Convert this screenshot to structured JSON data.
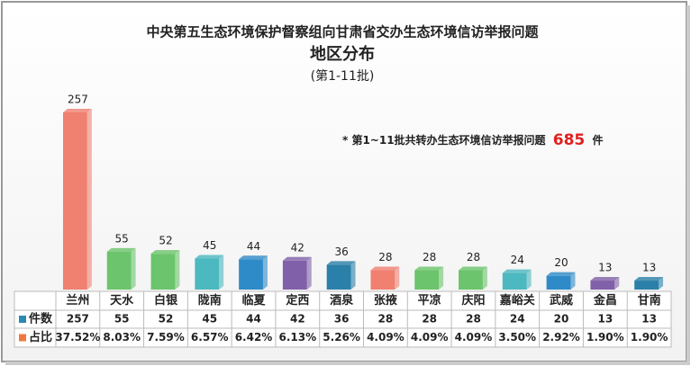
{
  "chart_data": {
    "type": "bar",
    "title": "中央第五生态环境保护督察组向甘肃省交办生态环境信访举报问题",
    "subtitle": "地区分布",
    "period": "(第1-11批)",
    "annotation": {
      "prefix": "* 第1~11批共转办生态环境信访举报问题",
      "total": 685,
      "unit": "件"
    },
    "categories": [
      "兰州",
      "天水",
      "白银",
      "陇南",
      "临夏",
      "定西",
      "酒泉",
      "张掖",
      "平凉",
      "庆阳",
      "嘉峪关",
      "武威",
      "金昌",
      "甘南"
    ],
    "series": [
      {
        "name": "件数",
        "color": "#2a8ab0",
        "values": [
          257,
          55,
          52,
          45,
          44,
          42,
          36,
          28,
          28,
          28,
          24,
          20,
          13,
          13
        ],
        "bar_colors": [
          "#f08070",
          "#6cc46c",
          "#6cc46c",
          "#4cb8c0",
          "#2e8bc8",
          "#8060a8",
          "#2a80a8",
          "#f08070",
          "#6cc46c",
          "#6cc46c",
          "#4cb8c0",
          "#2e8bc8",
          "#8060a8",
          "#2a80a8"
        ]
      },
      {
        "name": "占比",
        "color": "#f07840",
        "values": [
          37.52,
          8.03,
          7.59,
          6.57,
          6.42,
          6.13,
          5.26,
          4.09,
          4.09,
          4.09,
          3.5,
          2.92,
          1.9,
          1.9
        ],
        "value_labels": [
          "37.52%",
          "8.03%",
          "7.59%",
          "6.57%",
          "6.42%",
          "6.13%",
          "5.26%",
          "4.09%",
          "4.09%",
          "4.09%",
          "3.50%",
          "2.92%",
          "1.90%",
          "1.90%"
        ]
      }
    ]
  }
}
